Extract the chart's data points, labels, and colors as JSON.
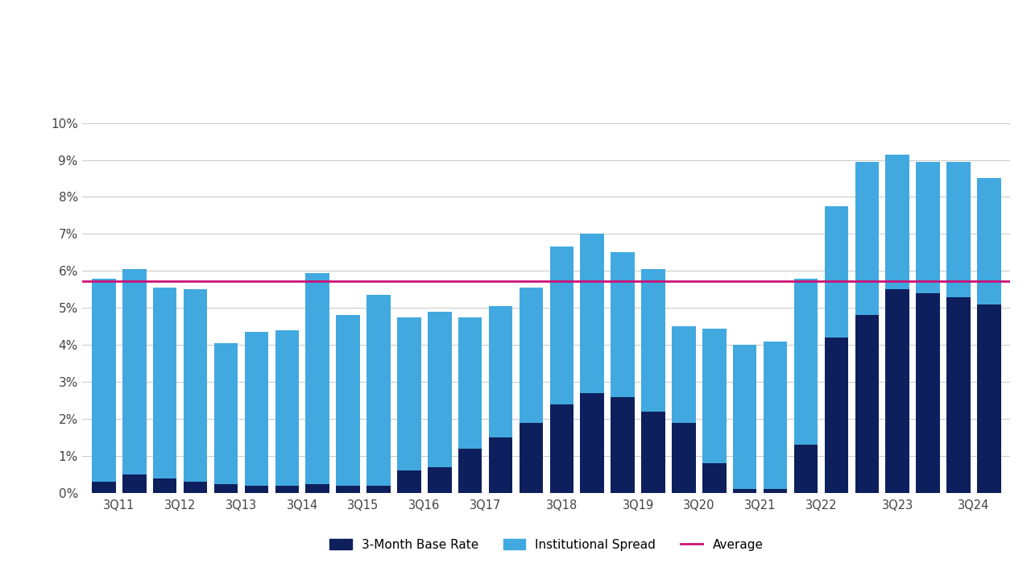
{
  "bars": [
    [
      "3Q11",
      0.3,
      5.5
    ],
    [
      "",
      0.5,
      5.55
    ],
    [
      "3Q12",
      0.4,
      5.15
    ],
    [
      "",
      0.3,
      5.2
    ],
    [
      "3Q13",
      0.25,
      3.8
    ],
    [
      "",
      0.2,
      4.15
    ],
    [
      "3Q14",
      0.2,
      4.2
    ],
    [
      "",
      0.25,
      5.7
    ],
    [
      "3Q15",
      0.2,
      4.6
    ],
    [
      "",
      0.2,
      5.15
    ],
    [
      "3Q16",
      0.6,
      4.15
    ],
    [
      "",
      0.7,
      4.2
    ],
    [
      "3Q17",
      1.2,
      3.55
    ],
    [
      "",
      1.5,
      3.55
    ],
    [
      "3Q18",
      1.9,
      3.65
    ],
    [
      "",
      2.4,
      4.25
    ],
    [
      "",
      2.7,
      4.3
    ],
    [
      "3Q19",
      2.6,
      3.9
    ],
    [
      "",
      2.2,
      3.85
    ],
    [
      "3Q20",
      1.9,
      2.6
    ],
    [
      "",
      0.8,
      3.65
    ],
    [
      "3Q21",
      0.1,
      3.9
    ],
    [
      "",
      0.1,
      4.0
    ],
    [
      "3Q22",
      1.3,
      4.5
    ],
    [
      "",
      4.2,
      3.55
    ],
    [
      "3Q23",
      4.8,
      4.15
    ],
    [
      "",
      5.5,
      3.65
    ],
    [
      "",
      5.4,
      3.55
    ],
    [
      "3Q24",
      5.3,
      3.65
    ],
    [
      "",
      5.1,
      3.4
    ]
  ],
  "average": 5.73,
  "base_color": "#0d1f5c",
  "spread_color": "#41a9e0",
  "average_color": "#cc1177",
  "background_color": "#ffffff",
  "grid_color": "#cccccc",
  "legend_base": "3-Month Base Rate",
  "legend_spread": "Institutional Spread",
  "legend_avg": "Average"
}
